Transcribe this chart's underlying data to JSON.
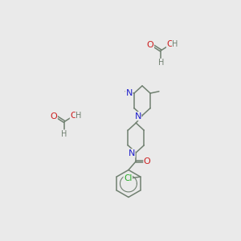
{
  "bg_color": "#eaeaea",
  "atom_colors": {
    "C": "#708070",
    "N": "#2020cc",
    "O": "#cc2020",
    "Cl": "#22aa22",
    "H": "#708070"
  },
  "bond_color": "#708070",
  "lw": 1.1
}
